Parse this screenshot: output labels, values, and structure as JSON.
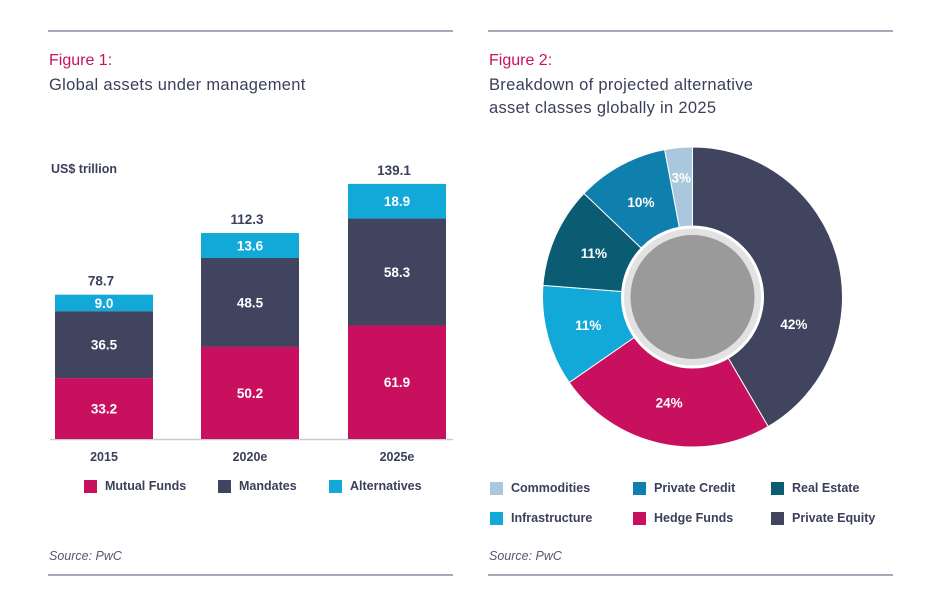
{
  "colors": {
    "mutual_funds": "#c8105f",
    "mandates": "#40445f",
    "alternatives": "#12a9d9",
    "commodities": "#a9c8de",
    "private_credit": "#0f7fae",
    "real_estate": "#0b5c73",
    "infrastructure": "#12a9d9",
    "hedge_funds": "#c8105f",
    "private_equity": "#40445f",
    "center": "#9a9a9a"
  },
  "figure1": {
    "label": "Figure 1:",
    "title": "Global assets under management",
    "unit": "US$ trillion",
    "source": "Source: PwC"
  },
  "figure2": {
    "label": "Figure 2:",
    "title_line1": "Breakdown of projected alternative",
    "title_line2": "asset classes globally in 2025",
    "source": "Source: PwC"
  },
  "chart_data": [
    {
      "type": "bar",
      "stacked": true,
      "title": "Global assets under management",
      "ylabel": "US$ trillion",
      "categories": [
        "2015",
        "2020e",
        "2025e"
      ],
      "series": [
        {
          "name": "Mutual Funds",
          "values": [
            33.2,
            50.2,
            61.9
          ],
          "color": "#c8105f"
        },
        {
          "name": "Mandates",
          "values": [
            36.5,
            48.5,
            58.3
          ],
          "color": "#40445f"
        },
        {
          "name": "Alternatives",
          "values": [
            9.0,
            13.6,
            18.9
          ],
          "color": "#12a9d9"
        }
      ],
      "totals": [
        "78.7",
        "112.3",
        "139.1"
      ],
      "ylim": [
        0,
        150
      ],
      "grid": false,
      "legend": "bottom"
    },
    {
      "type": "pie",
      "donut": true,
      "title": "Breakdown of projected alternative asset classes globally in 2025",
      "slices": [
        {
          "name": "Private Equity",
          "value": 42,
          "label": "42%",
          "color": "#40445f"
        },
        {
          "name": "Hedge Funds",
          "value": 24,
          "label": "24%",
          "color": "#c8105f"
        },
        {
          "name": "Infrastructure",
          "value": 11,
          "label": "11%",
          "color": "#12a9d9"
        },
        {
          "name": "Real Estate",
          "value": 11,
          "label": "11%",
          "color": "#0b5c73"
        },
        {
          "name": "Private Credit",
          "value": 10,
          "label": "10%",
          "color": "#0f7fae"
        },
        {
          "name": "Commodities",
          "value": 3,
          "label": "3%",
          "color": "#a9c8de"
        }
      ],
      "legend_order": [
        "Commodities",
        "Private Credit",
        "Real Estate",
        "Infrastructure",
        "Hedge Funds",
        "Private Equity"
      ],
      "legend": "bottom"
    }
  ]
}
